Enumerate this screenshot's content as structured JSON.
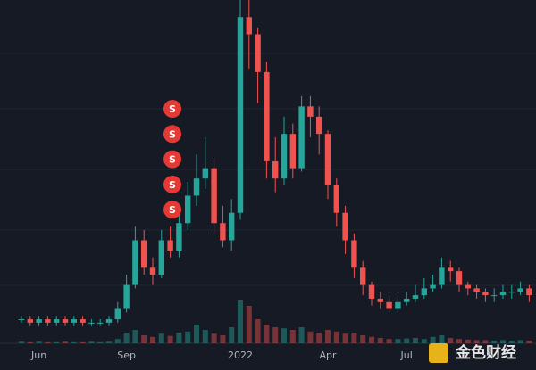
{
  "chart_data": {
    "type": "candlestick",
    "categories": [
      null,
      null,
      "Jun",
      null,
      null,
      null,
      null,
      null,
      null,
      null,
      null,
      null,
      "Sep",
      null,
      null,
      null,
      null,
      null,
      null,
      null,
      null,
      null,
      null,
      null,
      null,
      "2022",
      null,
      null,
      null,
      null,
      null,
      null,
      null,
      null,
      null,
      "Apr",
      null,
      null,
      null,
      null,
      null,
      null,
      null,
      null,
      "Jul",
      null,
      null,
      null,
      null,
      null,
      null,
      null,
      null,
      null,
      null,
      null,
      null,
      null,
      null
    ],
    "open": [
      7,
      7,
      6,
      7,
      6,
      7,
      6,
      7,
      6,
      6,
      6,
      7,
      10,
      17,
      30,
      22,
      20,
      30,
      27,
      35,
      43,
      48,
      51,
      35,
      30,
      38,
      95,
      90,
      79,
      53,
      48,
      61,
      51,
      69,
      66,
      61,
      46,
      38,
      30,
      22,
      17,
      13,
      12,
      10,
      12,
      13,
      14,
      16,
      17,
      22,
      21,
      17,
      16,
      15,
      14,
      14,
      15,
      15,
      16
    ],
    "high": [
      8,
      8,
      8,
      8,
      8,
      8,
      8,
      8,
      7,
      7,
      8,
      12,
      20,
      34,
      33,
      25,
      33,
      34,
      38,
      47,
      55,
      60,
      54,
      40,
      42,
      100,
      100,
      92,
      82,
      60,
      66,
      64,
      72,
      72,
      69,
      62,
      48,
      40,
      32,
      24,
      18,
      15,
      14,
      14,
      15,
      17,
      19,
      20,
      25,
      24,
      22,
      18,
      17,
      16,
      16,
      17,
      17,
      18,
      17
    ],
    "low": [
      6,
      5,
      5,
      5,
      5,
      5,
      5,
      5,
      5,
      5,
      5,
      6,
      9,
      16,
      20,
      17,
      19,
      25,
      25,
      33,
      40,
      45,
      32,
      28,
      27,
      36,
      80,
      70,
      48,
      44,
      46,
      48,
      50,
      60,
      55,
      42,
      34,
      26,
      19,
      14,
      11,
      10,
      9,
      9,
      11,
      12,
      13,
      15,
      16,
      18,
      15,
      14,
      13,
      12,
      12,
      13,
      13,
      14,
      12
    ],
    "close": [
      7,
      6,
      7,
      6,
      7,
      6,
      7,
      6,
      6,
      6,
      7,
      10,
      17,
      30,
      22,
      20,
      30,
      27,
      35,
      43,
      48,
      51,
      35,
      30,
      38,
      95,
      90,
      79,
      53,
      48,
      61,
      51,
      69,
      66,
      61,
      46,
      38,
      30,
      22,
      17,
      13,
      12,
      10,
      12,
      13,
      14,
      16,
      17,
      22,
      21,
      17,
      16,
      15,
      14,
      14,
      15,
      15,
      16,
      14
    ],
    "volume": [
      3,
      2,
      3,
      2,
      2,
      3,
      2,
      2,
      3,
      2,
      3,
      8,
      20,
      25,
      15,
      12,
      18,
      14,
      20,
      22,
      35,
      25,
      18,
      15,
      30,
      80,
      70,
      45,
      35,
      30,
      28,
      25,
      30,
      22,
      20,
      25,
      22,
      18,
      20,
      15,
      12,
      10,
      8,
      8,
      9,
      10,
      8,
      12,
      15,
      10,
      8,
      7,
      6,
      6,
      5,
      6,
      5,
      6,
      5
    ],
    "ylim": [
      0,
      100
    ],
    "volume_lim": [
      0,
      100
    ],
    "up_color": "#26a69a",
    "down_color": "#ef5350",
    "markers": [
      "S",
      "S",
      "S",
      "S",
      "S"
    ],
    "watermark": "金色财经"
  }
}
